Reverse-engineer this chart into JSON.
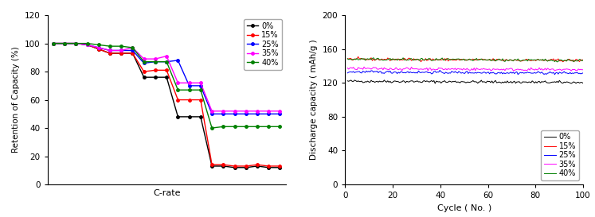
{
  "chart1": {
    "xlabel": "C-rate",
    "ylabel": "Retention of Capacity (%)",
    "ylim": [
      0,
      120
    ],
    "yticks": [
      0,
      20,
      40,
      60,
      80,
      100,
      120
    ],
    "series": {
      "0%": {
        "color": "#000000",
        "data_x": [
          0,
          1,
          2,
          3,
          4,
          5,
          6,
          7,
          8,
          9,
          10,
          11,
          12,
          13,
          14,
          15,
          16,
          17,
          18,
          19,
          20
        ],
        "data_y": [
          100,
          100,
          100,
          99,
          96,
          93,
          93,
          93,
          76,
          76,
          76,
          48,
          48,
          48,
          13,
          13,
          12,
          12,
          13,
          12,
          12
        ]
      },
      "15%": {
        "color": "#ff0000",
        "data_x": [
          0,
          1,
          2,
          3,
          4,
          5,
          6,
          7,
          8,
          9,
          10,
          11,
          12,
          13,
          14,
          15,
          16,
          17,
          18,
          19,
          20
        ],
        "data_y": [
          100,
          100,
          100,
          99,
          96,
          93,
          93,
          93,
          80,
          81,
          81,
          60,
          60,
          60,
          14,
          14,
          13,
          13,
          14,
          13,
          13
        ]
      },
      "25%": {
        "color": "#0000ff",
        "data_x": [
          0,
          1,
          2,
          3,
          4,
          5,
          6,
          7,
          8,
          9,
          10,
          11,
          12,
          13,
          14,
          15,
          16,
          17,
          18,
          19,
          20
        ],
        "data_y": [
          100,
          100,
          100,
          99,
          97,
          95,
          95,
          95,
          86,
          87,
          87,
          88,
          70,
          70,
          50,
          50,
          50,
          50,
          50,
          50,
          50
        ]
      },
      "35%": {
        "color": "#ff00ff",
        "data_x": [
          0,
          1,
          2,
          3,
          4,
          5,
          6,
          7,
          8,
          9,
          10,
          11,
          12,
          13,
          14,
          15,
          16,
          17,
          18,
          19,
          20
        ],
        "data_y": [
          100,
          100,
          100,
          99,
          97,
          95,
          95,
          97,
          89,
          89,
          91,
          72,
          72,
          72,
          52,
          52,
          52,
          52,
          52,
          52,
          52
        ]
      },
      "40%": {
        "color": "#008000",
        "data_x": [
          0,
          1,
          2,
          3,
          4,
          5,
          6,
          7,
          8,
          9,
          10,
          11,
          12,
          13,
          14,
          15,
          16,
          17,
          18,
          19,
          20
        ],
        "data_y": [
          100,
          100,
          100,
          100,
          99,
          98,
          98,
          97,
          87,
          87,
          87,
          67,
          67,
          67,
          40,
          41,
          41,
          41,
          41,
          41,
          41
        ]
      }
    }
  },
  "chart2": {
    "xlabel": "Cycle ( No. )",
    "ylabel": "Discharge capacity ( mAh/g )",
    "ylim": [
      0,
      200
    ],
    "yticks": [
      0,
      40,
      80,
      120,
      160,
      200
    ],
    "xlim": [
      0,
      100
    ],
    "xticks": [
      0,
      20,
      40,
      60,
      80,
      100
    ],
    "series": {
      "0%": {
        "color": "#000000",
        "mean": 122,
        "noise": 0.8
      },
      "15%": {
        "color": "#ff0000",
        "mean": 148,
        "noise": 0.8
      },
      "25%": {
        "color": "#0000ff",
        "mean": 133,
        "noise": 0.8
      },
      "35%": {
        "color": "#ff00ff",
        "mean": 137,
        "noise": 0.8
      },
      "40%": {
        "color": "#008000",
        "mean": 148,
        "noise": 0.8
      }
    }
  },
  "legend_labels": [
    "0%",
    "15%",
    "25%",
    "35%",
    "40%"
  ],
  "legend_colors": [
    "#000000",
    "#ff0000",
    "#0000ff",
    "#ff00ff",
    "#008000"
  ]
}
